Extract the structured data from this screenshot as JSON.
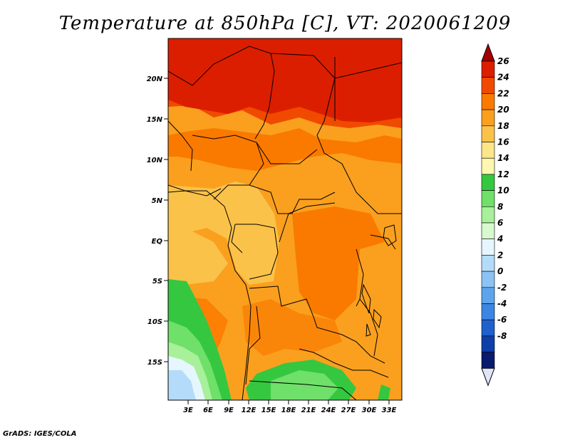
{
  "title": "Temperature at 850hPa [C], VT: 2020061209",
  "credit": "GrADS: IGES/COLA",
  "map": {
    "lat_labels": [
      "20N",
      "15N",
      "10N",
      "5N",
      "EQ",
      "5S",
      "10S",
      "15S"
    ],
    "lon_labels": [
      "3E",
      "6E",
      "9E",
      "12E",
      "15E",
      "18E",
      "21E",
      "24E",
      "27E",
      "30E",
      "33E"
    ]
  },
  "colorbar": {
    "labels": [
      "26",
      "24",
      "22",
      "20",
      "18",
      "16",
      "14",
      "12",
      "10",
      "8",
      "6",
      "4",
      "2",
      "0",
      "-2",
      "-4",
      "-6",
      "-8"
    ],
    "colors": [
      "#a50000",
      "#dc1e00",
      "#f04a00",
      "#fa7a00",
      "#faa01e",
      "#fbc24a",
      "#fde68a",
      "#fff7b0",
      "#35c740",
      "#6fe06a",
      "#a8f09a",
      "#d8f8d0",
      "#e6f6ff",
      "#b4dcfa",
      "#8cc2f4",
      "#5ea4ec",
      "#3a86e2",
      "#1e60cc",
      "#0e3ea8",
      "#0a1a6c",
      "#e0e4f8"
    ]
  }
}
